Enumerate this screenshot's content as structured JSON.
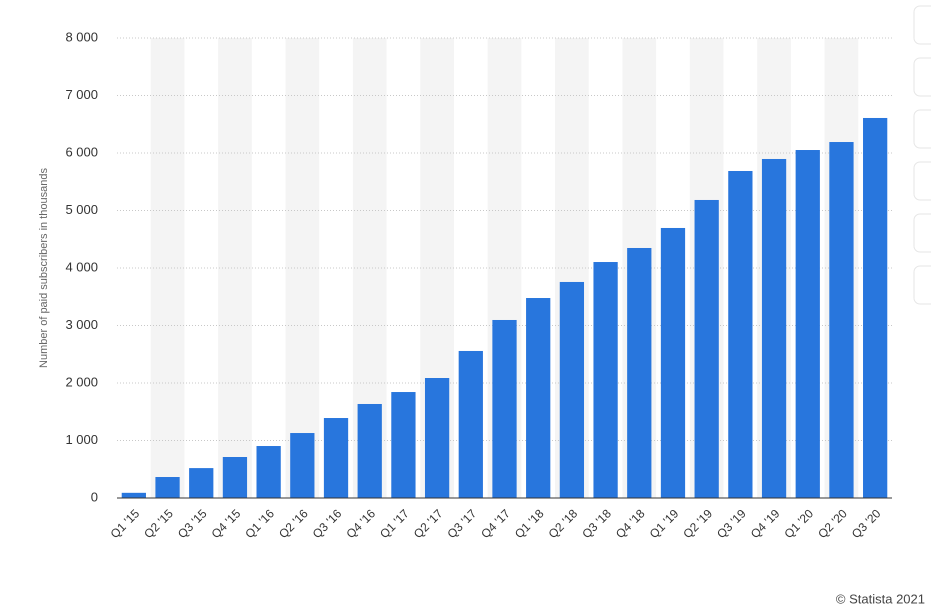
{
  "chart_data": {
    "type": "bar",
    "y_axis_label": "Number of paid subscribers in thousands",
    "source": "© Statista 2021",
    "categories": [
      "Q1 '15",
      "Q2 '15",
      "Q3 '15",
      "Q4 '15",
      "Q1 '16",
      "Q2 '16",
      "Q3 '16",
      "Q4 '16",
      "Q1 '17",
      "Q2 '17",
      "Q3 '17",
      "Q4 '17",
      "Q1 '18",
      "Q2 '18",
      "Q3 '18",
      "Q4 '18",
      "Q1 '19",
      "Q2 '19",
      "Q3 '19",
      "Q4 '19",
      "Q1 '20",
      "Q2 '20",
      "Q3 '20"
    ],
    "values": [
      90,
      365,
      520,
      713,
      904,
      1130,
      1391,
      1635,
      1843,
      2087,
      2557,
      3096,
      3478,
      3757,
      4104,
      4348,
      4696,
      5183,
      5687,
      5896,
      6052,
      6191,
      6609
    ],
    "color": "#2876dd",
    "ylim": [
      0,
      8000
    ],
    "yticks": [
      {
        "value": 0,
        "label": "0"
      },
      {
        "value": 1000,
        "label": "1 000"
      },
      {
        "value": 2000,
        "label": "2 000"
      },
      {
        "value": 3000,
        "label": "3 000"
      },
      {
        "value": 4000,
        "label": "4 000"
      },
      {
        "value": 5000,
        "label": "5 000"
      },
      {
        "value": 6000,
        "label": "6 000"
      },
      {
        "value": 7000,
        "label": "7 000"
      },
      {
        "value": 8000,
        "label": "8 000"
      }
    ],
    "grid": true
  }
}
